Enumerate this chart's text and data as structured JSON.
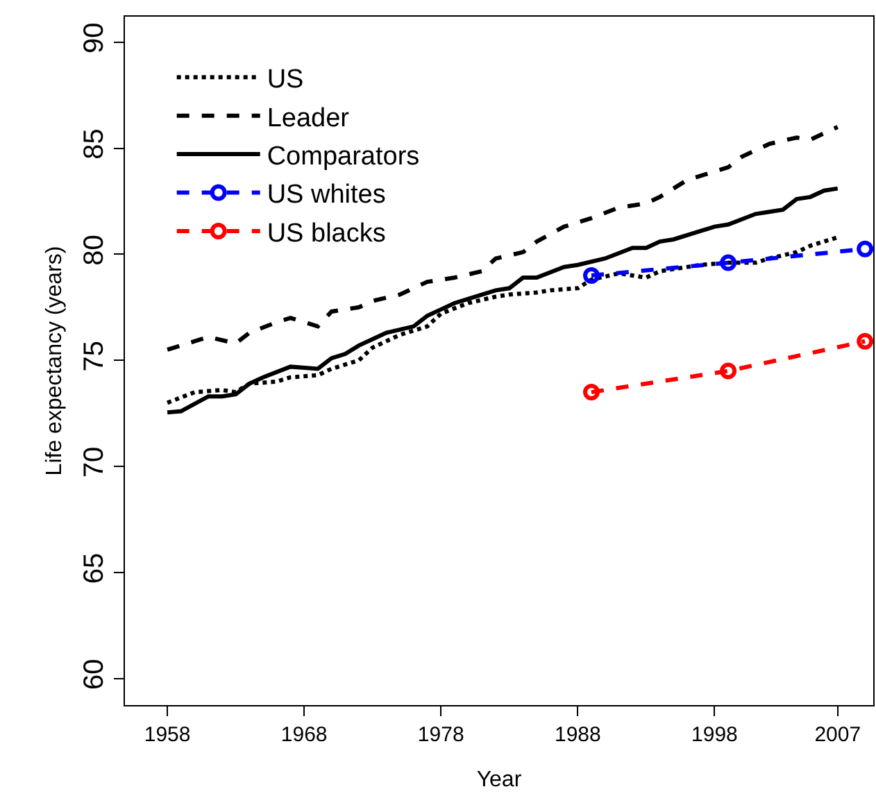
{
  "chart_data": {
    "type": "line",
    "xlabel": "Year",
    "ylabel": "Life expectancy (years)",
    "xlim": [
      1954.9,
      2009.6
    ],
    "xticks": [
      1958,
      1968,
      1978,
      1988,
      1998,
      2007
    ],
    "ylim": [
      58.75,
      91.2
    ],
    "yticks": [
      60,
      65,
      70,
      75,
      80,
      85,
      90
    ],
    "grid": false,
    "legend": "top left",
    "marker": "none",
    "series": [
      {
        "name": "US",
        "color": "#000000",
        "line_style": "dotted",
        "x": [
          1958,
          1960,
          1962,
          1963,
          1964,
          1966,
          1967,
          1969,
          1970,
          1972,
          1973,
          1975,
          1977,
          1978,
          1980,
          1982,
          1983,
          1985,
          1986,
          1988,
          1989,
          1991,
          1993,
          1994,
          1997,
          1999,
          2001,
          2002,
          2004,
          2005,
          2007
        ],
        "values": [
          73.0,
          73.5,
          73.6,
          73.5,
          73.9,
          74.0,
          74.2,
          74.3,
          74.6,
          75.0,
          75.6,
          76.2,
          76.6,
          77.2,
          77.7,
          78.0,
          78.1,
          78.2,
          78.3,
          78.4,
          78.8,
          79.1,
          78.9,
          79.2,
          79.5,
          79.6,
          79.6,
          79.8,
          80.1,
          80.4,
          80.8
        ]
      },
      {
        "name": "Leader",
        "color": "#000000",
        "line_style": "dashed",
        "x": [
          1958,
          1960,
          1961,
          1963,
          1964,
          1966,
          1967,
          1969,
          1970,
          1972,
          1973,
          1975,
          1977,
          1979,
          1981,
          1982,
          1984,
          1985,
          1987,
          1989,
          1991,
          1993,
          1994,
          1996,
          1999,
          2000,
          2002,
          2004,
          2005,
          2007
        ],
        "values": [
          75.5,
          75.9,
          76.1,
          75.8,
          76.3,
          76.8,
          77.0,
          76.6,
          77.3,
          77.5,
          77.8,
          78.1,
          78.7,
          78.9,
          79.2,
          79.8,
          80.1,
          80.6,
          81.3,
          81.7,
          82.2,
          82.4,
          82.7,
          83.5,
          84.1,
          84.6,
          85.2,
          85.5,
          85.4,
          86.0
        ]
      },
      {
        "name": "Comparators",
        "color": "#000000",
        "line_style": "solid",
        "x": [
          1958,
          1959,
          1961,
          1962,
          1963,
          1964,
          1965,
          1967,
          1969,
          1970,
          1971,
          1972,
          1973,
          1974,
          1976,
          1977,
          1978,
          1979,
          1980,
          1982,
          1983,
          1984,
          1985,
          1987,
          1988,
          1990,
          1992,
          1993,
          1994,
          1995,
          1998,
          1999,
          2001,
          2002,
          2003,
          2004,
          2005,
          2006,
          2007
        ],
        "values": [
          72.55,
          72.6,
          73.3,
          73.3,
          73.4,
          73.9,
          74.2,
          74.7,
          74.6,
          75.1,
          75.3,
          75.7,
          76.0,
          76.3,
          76.6,
          77.1,
          77.4,
          77.7,
          77.9,
          78.3,
          78.4,
          78.9,
          78.9,
          79.4,
          79.5,
          79.8,
          80.3,
          80.3,
          80.6,
          80.7,
          81.3,
          81.4,
          81.9,
          82.0,
          82.1,
          82.6,
          82.7,
          83.0,
          83.1
        ]
      },
      {
        "name": "US whites",
        "color": "#0000ff",
        "line_style": "dashed",
        "marker": "circle",
        "x": [
          1989,
          1999,
          2009
        ],
        "values": [
          79.0,
          79.6,
          80.25
        ]
      },
      {
        "name": "US blacks",
        "color": "#ff0000",
        "line_style": "dashed",
        "marker": "circle",
        "x": [
          1989,
          1999,
          2009
        ],
        "values": [
          73.5,
          74.5,
          75.9
        ]
      }
    ]
  }
}
